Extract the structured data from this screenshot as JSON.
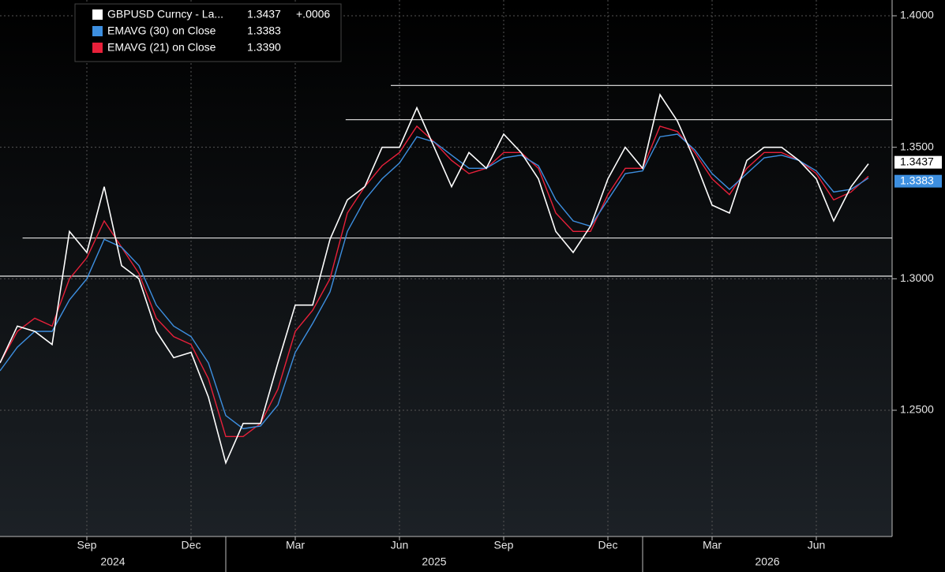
{
  "chart_data": {
    "type": "line",
    "categories": [
      null,
      null,
      null,
      null,
      null,
      "Sep",
      null,
      null,
      null,
      null,
      null,
      "Dec",
      null,
      null,
      null,
      null,
      null,
      "Mar",
      null,
      null,
      null,
      null,
      null,
      "Jun",
      null,
      null,
      null,
      null,
      null,
      "Sep",
      null,
      null,
      null,
      null,
      null,
      "Dec",
      null,
      null,
      null,
      null,
      null,
      "Mar",
      null,
      null,
      null,
      null,
      null,
      "Jun",
      null,
      null,
      null
    ],
    "year_groups": [
      {
        "label": "2024",
        "start": 0
      },
      {
        "label": "2025",
        "start": 13
      },
      {
        "label": "2026",
        "start": 37
      }
    ],
    "series": [
      {
        "name": "GBPUSD Curncy - La...",
        "legend_value": "1.3437",
        "change": "+.0006",
        "color": "#ffffff",
        "values": [
          1.268,
          1.282,
          1.28,
          1.275,
          1.318,
          1.31,
          1.335,
          1.305,
          1.3,
          1.28,
          1.27,
          1.272,
          1.255,
          1.23,
          1.245,
          1.245,
          1.268,
          1.29,
          1.29,
          1.315,
          1.33,
          1.335,
          1.35,
          1.35,
          1.365,
          1.35,
          1.335,
          1.348,
          1.342,
          1.355,
          1.348,
          1.338,
          1.318,
          1.31,
          1.32,
          1.338,
          1.35,
          1.342,
          1.37,
          1.36,
          1.345,
          1.328,
          1.325,
          1.345,
          1.35,
          1.35,
          1.345,
          1.338,
          1.322,
          1.335,
          1.3437
        ]
      },
      {
        "name": "EMAVG (30)  on Close",
        "legend_value": "1.3383",
        "color": "#3d8fe0",
        "values": [
          1.265,
          1.274,
          1.28,
          1.28,
          1.292,
          1.3,
          1.315,
          1.312,
          1.305,
          1.29,
          1.282,
          1.278,
          1.268,
          1.248,
          1.243,
          1.244,
          1.252,
          1.272,
          1.283,
          1.295,
          1.318,
          1.33,
          1.338,
          1.344,
          1.354,
          1.352,
          1.347,
          1.342,
          1.342,
          1.346,
          1.347,
          1.343,
          1.33,
          1.322,
          1.32,
          1.33,
          1.34,
          1.341,
          1.354,
          1.355,
          1.349,
          1.34,
          1.334,
          1.34,
          1.346,
          1.347,
          1.345,
          1.341,
          1.333,
          1.334,
          1.3383
        ]
      },
      {
        "name": "EMAVG (21)  on Close",
        "legend_value": "1.3390",
        "color": "#e8203a",
        "values": [
          1.268,
          1.28,
          1.285,
          1.282,
          1.3,
          1.308,
          1.322,
          1.312,
          1.302,
          1.285,
          1.278,
          1.275,
          1.262,
          1.24,
          1.24,
          1.245,
          1.258,
          1.28,
          1.288,
          1.3,
          1.325,
          1.335,
          1.343,
          1.348,
          1.358,
          1.352,
          1.345,
          1.34,
          1.342,
          1.348,
          1.348,
          1.342,
          1.325,
          1.318,
          1.318,
          1.332,
          1.342,
          1.342,
          1.358,
          1.356,
          1.348,
          1.338,
          1.332,
          1.342,
          1.348,
          1.348,
          1.345,
          1.34,
          1.33,
          1.333,
          1.339
        ]
      }
    ],
    "hlines": [
      {
        "y": 1.3735,
        "from": 22.5
      },
      {
        "y": 1.3605,
        "from": 19.9
      },
      {
        "y": 1.3155,
        "from": 1.3
      },
      {
        "y": 1.301,
        "from": 0
      }
    ],
    "ylim": [
      1.202,
      1.406
    ],
    "yticks": [
      {
        "value": 1.25,
        "label": "1.2500"
      },
      {
        "value": 1.3,
        "label": "1.3000"
      },
      {
        "value": 1.35,
        "label": "1.3500"
      },
      {
        "value": 1.4,
        "label": "1.4000"
      }
    ],
    "grid": true
  }
}
